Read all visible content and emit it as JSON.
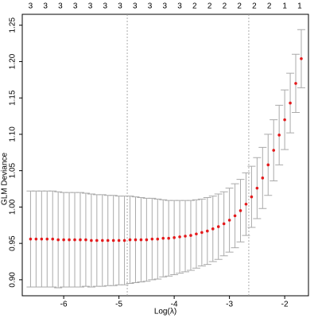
{
  "chart_data": {
    "type": "errorbar",
    "xlabel": "Log(λ)",
    "ylabel": "GLM Deviance",
    "x": [
      -6.6,
      -6.5,
      -6.4,
      -6.3,
      -6.2,
      -6.1,
      -6.0,
      -5.9,
      -5.8,
      -5.7,
      -5.6,
      -5.5,
      -5.4,
      -5.3,
      -5.2,
      -5.1,
      -5.0,
      -4.9,
      -4.8,
      -4.7,
      -4.6,
      -4.5,
      -4.4,
      -4.3,
      -4.2,
      -4.1,
      -4.0,
      -3.9,
      -3.8,
      -3.7,
      -3.6,
      -3.5,
      -3.4,
      -3.3,
      -3.2,
      -3.1,
      -3.0,
      -2.9,
      -2.8,
      -2.7,
      -2.6,
      -2.5,
      -2.4,
      -2.3,
      -2.2,
      -2.1,
      -2.0,
      -1.9,
      -1.8,
      -1.7
    ],
    "values": [
      0.956,
      0.956,
      0.956,
      0.956,
      0.956,
      0.955,
      0.955,
      0.955,
      0.955,
      0.955,
      0.955,
      0.954,
      0.954,
      0.954,
      0.954,
      0.954,
      0.954,
      0.954,
      0.955,
      0.955,
      0.955,
      0.955,
      0.956,
      0.956,
      0.957,
      0.957,
      0.958,
      0.959,
      0.96,
      0.961,
      0.963,
      0.965,
      0.967,
      0.97,
      0.973,
      0.977,
      0.982,
      0.988,
      0.995,
      1.004,
      1.014,
      1.026,
      1.04,
      1.058,
      1.078,
      1.099,
      1.12,
      1.143,
      1.17,
      1.204
    ],
    "errors": [
      0.066,
      0.066,
      0.066,
      0.066,
      0.066,
      0.066,
      0.065,
      0.065,
      0.065,
      0.065,
      0.064,
      0.064,
      0.063,
      0.063,
      0.062,
      0.062,
      0.061,
      0.061,
      0.06,
      0.059,
      0.058,
      0.057,
      0.056,
      0.055,
      0.053,
      0.052,
      0.051,
      0.05,
      0.049,
      0.048,
      0.047,
      0.046,
      0.046,
      0.045,
      0.045,
      0.044,
      0.044,
      0.044,
      0.043,
      0.043,
      0.042,
      0.042,
      0.042,
      0.042,
      0.042,
      0.041,
      0.041,
      0.041,
      0.04,
      0.04
    ],
    "color": "#e41a1c",
    "error_color": "#aaaaaa",
    "top_axis": {
      "x": [
        -6.6,
        -6.33,
        -6.06,
        -5.79,
        -5.52,
        -5.25,
        -4.98,
        -4.71,
        -4.44,
        -4.17,
        -3.9,
        -3.63,
        -3.36,
        -3.09,
        -2.82,
        -2.55,
        -2.28,
        -2.0,
        -1.73
      ],
      "labels": [
        "3",
        "3",
        "3",
        "3",
        "3",
        "3",
        "3",
        "3",
        "3",
        "3",
        "3",
        "2",
        "2",
        "2",
        "2",
        "2",
        "2",
        "1",
        "1"
      ]
    },
    "vlines": [
      -4.85,
      -2.65
    ],
    "xlim": [
      -6.75,
      -1.57
    ],
    "ylim": [
      0.878,
      1.265
    ],
    "xticks": [
      -6,
      -5,
      -4,
      -3,
      -2
    ],
    "yticks": [
      {
        "value": 0.9,
        "label": "0.90"
      },
      0.95,
      {
        "value": 1.0,
        "label": "1.00"
      },
      1.05,
      {
        "value": 1.1,
        "label": "1.10"
      },
      1.15,
      {
        "value": 1.2,
        "label": "1.20"
      },
      1.25
    ]
  }
}
